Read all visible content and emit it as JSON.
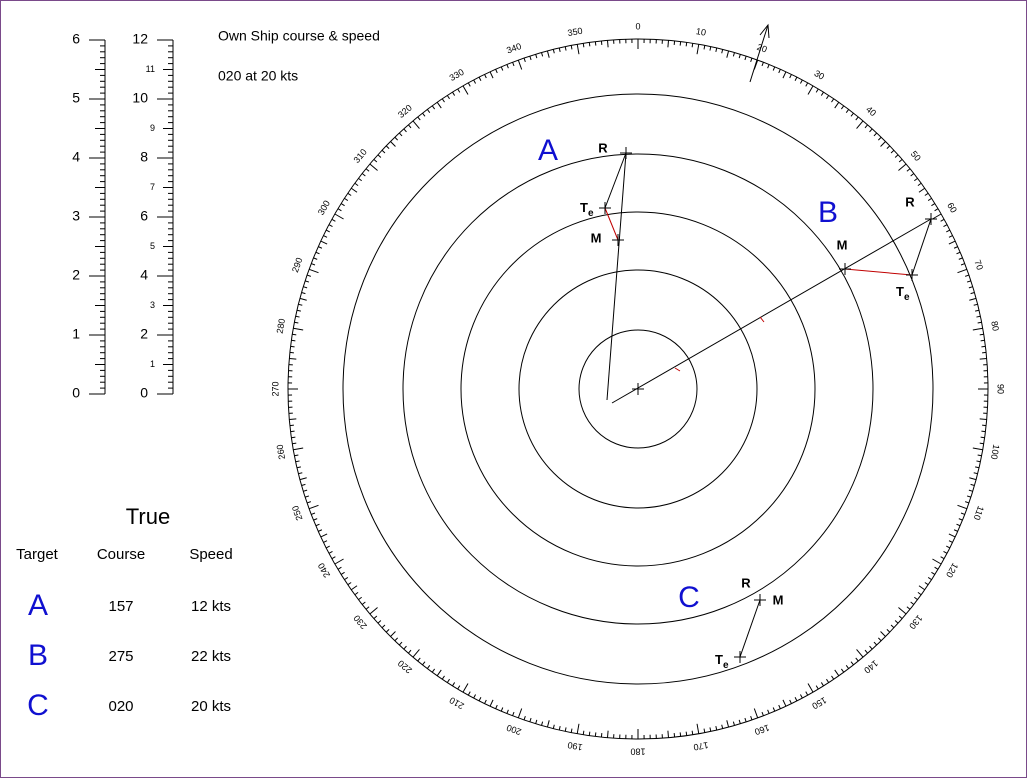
{
  "own_ship": {
    "heading": "Own Ship course & speed",
    "value": "020 at 20 kts"
  },
  "scale_nm": {
    "labels": [
      "0",
      "1",
      "2",
      "3",
      "4",
      "5",
      "6"
    ]
  },
  "scale_kts": {
    "major_labels": [
      "0",
      "2",
      "4",
      "6",
      "8",
      "10",
      "12"
    ],
    "minor_labels": [
      "1",
      "3",
      "5",
      "7",
      "9",
      "11"
    ]
  },
  "bearing_labels": [
    "0",
    "10",
    "20",
    "30",
    "40",
    "50",
    "60",
    "70",
    "80",
    "90",
    "100",
    "110",
    "120",
    "130",
    "140",
    "150",
    "160",
    "170",
    "180",
    "190",
    "200",
    "210",
    "220",
    "230",
    "240",
    "250",
    "260",
    "270",
    "280",
    "290",
    "300",
    "310",
    "320",
    "330",
    "340",
    "350"
  ],
  "plots": [
    {
      "target": "A",
      "r": "R",
      "m": "M",
      "te": {
        "main": "T",
        "sub": "e"
      }
    },
    {
      "target": "B",
      "r": "R",
      "m": "M",
      "te": {
        "main": "T",
        "sub": "e"
      }
    },
    {
      "target": "C",
      "r": "R",
      "m": "M",
      "te": {
        "main": "T",
        "sub": "e"
      }
    }
  ],
  "table": {
    "title": "True",
    "headers": [
      "Target",
      "Course",
      "Speed"
    ],
    "rows": [
      [
        "A",
        "157",
        "12 kts"
      ],
      [
        "B",
        "275",
        "22 kts"
      ],
      [
        "C",
        "020",
        "20 kts"
      ]
    ]
  }
}
